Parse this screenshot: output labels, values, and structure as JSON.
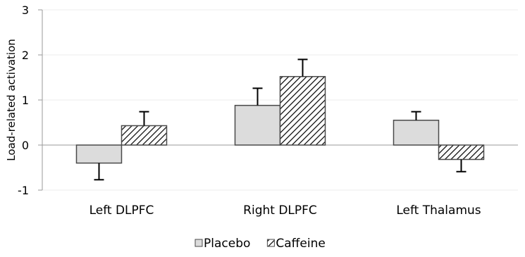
{
  "chart_data": {
    "type": "bar",
    "title": "",
    "xlabel": "",
    "ylabel": "Load-related activation",
    "ylim": [
      -1,
      3
    ],
    "yticks": [
      -1,
      0,
      1,
      2,
      3
    ],
    "grid": true,
    "legend_position": "bottom",
    "categories": [
      "Left DLPFC",
      "Right DLPFC",
      "Left Thalamus"
    ],
    "series": [
      {
        "name": "Placebo",
        "values": [
          -0.4,
          0.88,
          0.55
        ],
        "errors": [
          0.37,
          0.38,
          0.19
        ],
        "pattern": "solid",
        "color": "#dcdcdc"
      },
      {
        "name": "Caffeine",
        "values": [
          0.43,
          1.52,
          -0.32
        ],
        "errors": [
          0.31,
          0.38,
          0.27
        ],
        "pattern": "diagonal-hatch",
        "color": "#ffffff"
      }
    ]
  }
}
